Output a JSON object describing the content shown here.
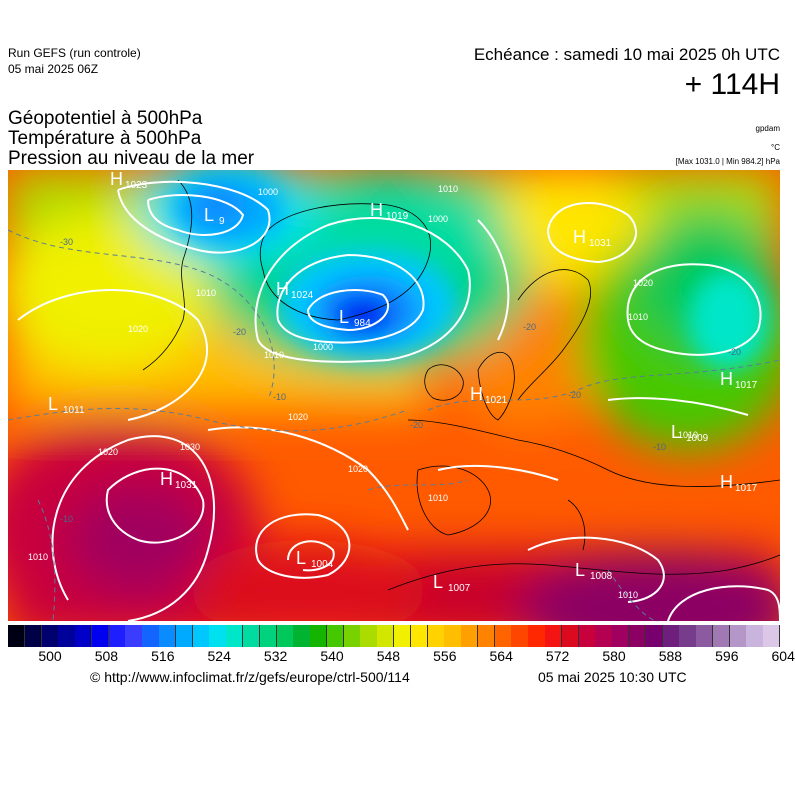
{
  "header": {
    "run_line1": "Run GEFS (run controle)",
    "run_line2": "05 mai 2025 06Z",
    "echeance": "Echéance : samedi 10 mai 2025 0h UTC",
    "hour": "+ 114H"
  },
  "titles": {
    "line1": "Géopotentiel à 500hPa",
    "line2": "Température à 500hPa",
    "line3": "Pression au niveau de la mer"
  },
  "units": {
    "gpdam": "gpdam",
    "celsius": "°C",
    "pressure_range": "[Max 1031.0 | Min 984.2] hPa"
  },
  "pressure_centers": [
    {
      "type": "H",
      "value": "1023"
    },
    {
      "type": "L",
      "value": "9"
    },
    {
      "type": "H",
      "value": "1019"
    },
    {
      "type": "H",
      "value": "1031"
    },
    {
      "type": "H",
      "value": "1024"
    },
    {
      "type": "L",
      "value": "984"
    },
    {
      "type": "L",
      "value": "1011"
    },
    {
      "type": "H",
      "value": "1021"
    },
    {
      "type": "H",
      "value": "1017"
    },
    {
      "type": "L",
      "value": "1009"
    },
    {
      "type": "H",
      "value": "1017"
    },
    {
      "type": "H",
      "value": "1031"
    },
    {
      "type": "L",
      "value": "1004"
    },
    {
      "type": "L",
      "value": "1007"
    },
    {
      "type": "L",
      "value": "1008"
    }
  ],
  "isobar_labels": [
    "1000",
    "1010",
    "1000",
    "1010",
    "1010",
    "1020",
    "1020",
    "1020",
    "1020",
    "1010",
    "1010",
    "1000",
    "1030",
    "1020",
    "1010",
    "1010",
    "1010"
  ],
  "temp_labels": [
    "-30",
    "-20",
    "-20",
    "-20",
    "-10",
    "-20",
    "-10",
    "-20",
    "-10"
  ],
  "scale": {
    "labels": [
      "500",
      "508",
      "516",
      "524",
      "532",
      "540",
      "548",
      "556",
      "564",
      "572",
      "580",
      "588",
      "596",
      "604"
    ],
    "colors": [
      "#000014",
      "#000046",
      "#00006e",
      "#00009b",
      "#0000c8",
      "#0000f0",
      "#1e1eff",
      "#3c3cff",
      "#1464ff",
      "#0a8cff",
      "#00aaff",
      "#00c8ff",
      "#00e1f0",
      "#00e6c8",
      "#00dca0",
      "#00d27d",
      "#00c85a",
      "#00b432",
      "#14b400",
      "#46c800",
      "#78d200",
      "#aadc00",
      "#d2e600",
      "#f0f000",
      "#ffe600",
      "#ffd200",
      "#ffbe00",
      "#ffa000",
      "#ff8200",
      "#ff6400",
      "#ff4600",
      "#ff2800",
      "#f51414",
      "#dc0a1e",
      "#c8003c",
      "#b40050",
      "#a0005f",
      "#8c0064",
      "#78006e",
      "#6e1e7d",
      "#783c8c",
      "#8c5aa0",
      "#a078b4",
      "#b496c8",
      "#c8b4dc",
      "#dcc8e6"
    ]
  },
  "footer": {
    "source": "© http://www.infoclimat.fr/z/gefs/europe/ctrl-500/114",
    "stamp": "05 mai 2025 10:30 UTC"
  }
}
